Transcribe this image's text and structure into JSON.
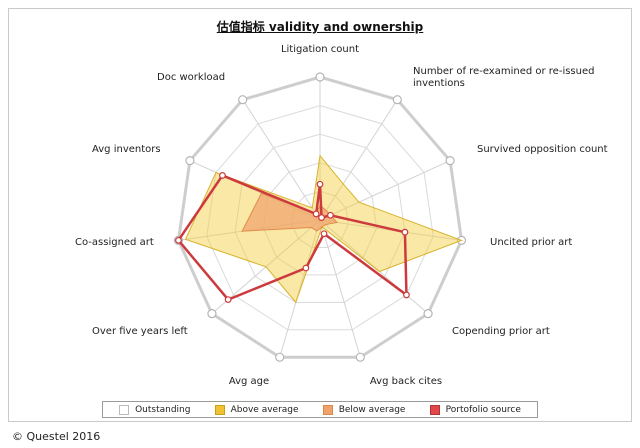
{
  "chart_data": {
    "type": "radar",
    "title": "估值指标 validity and ownership",
    "axes": [
      "Litigation count",
      "Number of re-examined or re-issued inventions",
      "Survived opposition count",
      "Uncited prior art",
      "Copending prior art",
      "Avg back cites",
      "Avg age",
      "Over five years left",
      "Co-assigned art",
      "Avg inventors",
      "Doc workload"
    ],
    "rmax": 1,
    "rings": 5,
    "series": [
      {
        "name": "Outstanding",
        "values": [
          1,
          1,
          1,
          1,
          1,
          1,
          1,
          1,
          1,
          1,
          1
        ],
        "color": "#ffffff",
        "stroke": "#cccccc"
      },
      {
        "name": "Above average",
        "values": [
          0.45,
          0.3,
          0.3,
          1.0,
          0.55,
          0.05,
          0.6,
          0.5,
          0.95,
          0.8,
          0.1
        ],
        "color": "#f5cc3c",
        "stroke": "#d8b22a"
      },
      {
        "name": "Below average",
        "values": [
          0.1,
          0.08,
          0.08,
          0.12,
          0.05,
          0.05,
          0.08,
          0.08,
          0.55,
          0.45,
          0.05
        ],
        "color": "#f0a36c",
        "stroke": "#e08a4a"
      },
      {
        "name": "Portofolio source",
        "values": [
          0.25,
          0.02,
          0.08,
          0.6,
          0.8,
          0.1,
          0.35,
          0.85,
          1.0,
          0.75,
          0.05
        ],
        "color": "#e2474a",
        "stroke": "#cc3a3d"
      }
    ]
  },
  "legend": {
    "items": [
      {
        "label": "Outstanding",
        "color": "#ffffff",
        "border": "#bbbbbb"
      },
      {
        "label": "Above average",
        "color": "#f1c232",
        "border": "#c9a21c"
      },
      {
        "label": "Below average",
        "color": "#f0a36c",
        "border": "#d9894d"
      },
      {
        "label": "Portofolio source",
        "color": "#e2474a",
        "border": "#b23436"
      }
    ]
  },
  "footer": {
    "copyright": "© Questel 2016"
  }
}
